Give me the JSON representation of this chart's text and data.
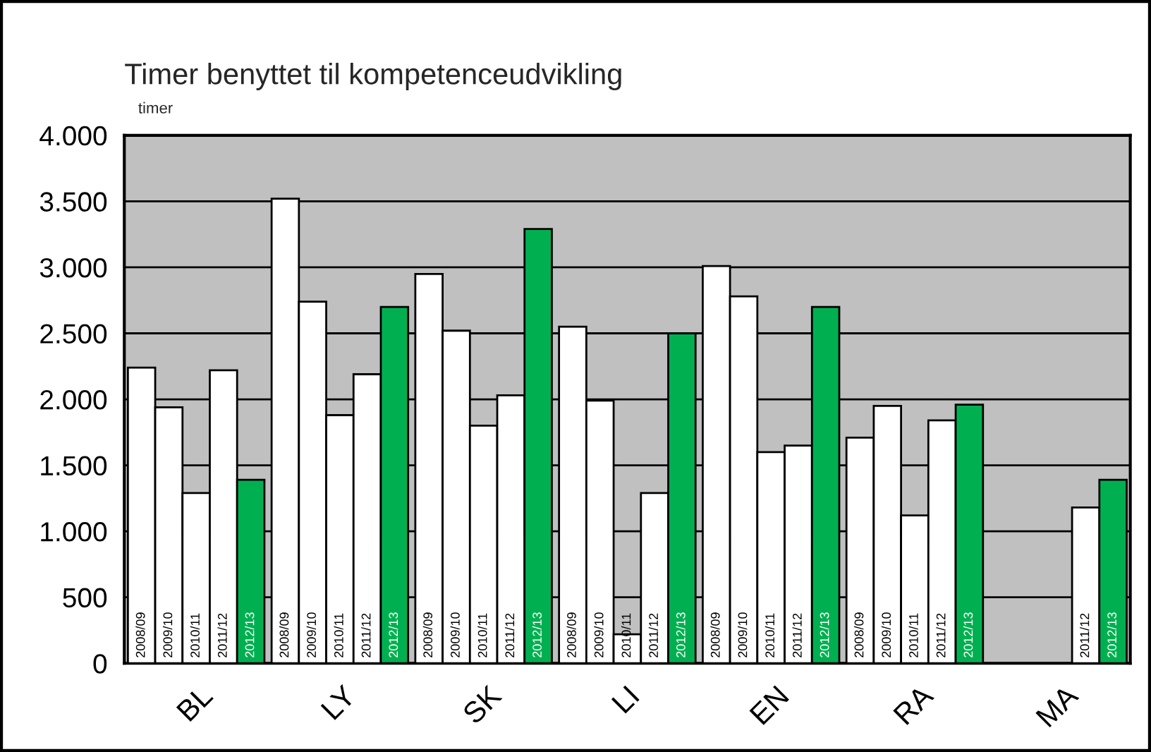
{
  "chart_data": {
    "type": "bar",
    "title": "Timer benyttet til kompetenceudvikling",
    "ylabel": "timer",
    "categories": [
      "BL",
      "LY",
      "SK",
      "LI",
      "EN",
      "RA",
      "MA"
    ],
    "series": [
      {
        "name": "2008/09",
        "color": "#ffffff",
        "values": [
          2240,
          3520,
          2950,
          2550,
          3010,
          1710,
          null
        ]
      },
      {
        "name": "2009/10",
        "color": "#ffffff",
        "values": [
          1940,
          2740,
          2520,
          1990,
          2780,
          1950,
          null
        ]
      },
      {
        "name": "2010/11",
        "color": "#ffffff",
        "values": [
          1290,
          1880,
          1800,
          220,
          1600,
          1120,
          null
        ]
      },
      {
        "name": "2011/12",
        "color": "#ffffff",
        "values": [
          2220,
          2190,
          2030,
          1290,
          1650,
          1840,
          1180
        ]
      },
      {
        "name": "2012/13",
        "color": "#00b050",
        "values": [
          1390,
          2700,
          3290,
          2500,
          2700,
          1960,
          1390
        ]
      }
    ],
    "ylim": [
      0,
      4000
    ],
    "yticks": [
      0,
      500,
      {
        "value": 1000,
        "label": "1.000"
      },
      {
        "value": 1500,
        "label": "1.500"
      },
      {
        "value": 2000,
        "label": "2.000"
      },
      {
        "value": 2500,
        "label": "2.500"
      },
      {
        "value": 3000,
        "label": "3.000"
      },
      {
        "value": 3500,
        "label": "3.500"
      },
      {
        "value": 4000,
        "label": "4.000"
      }
    ],
    "grid": "y",
    "legend": false
  }
}
